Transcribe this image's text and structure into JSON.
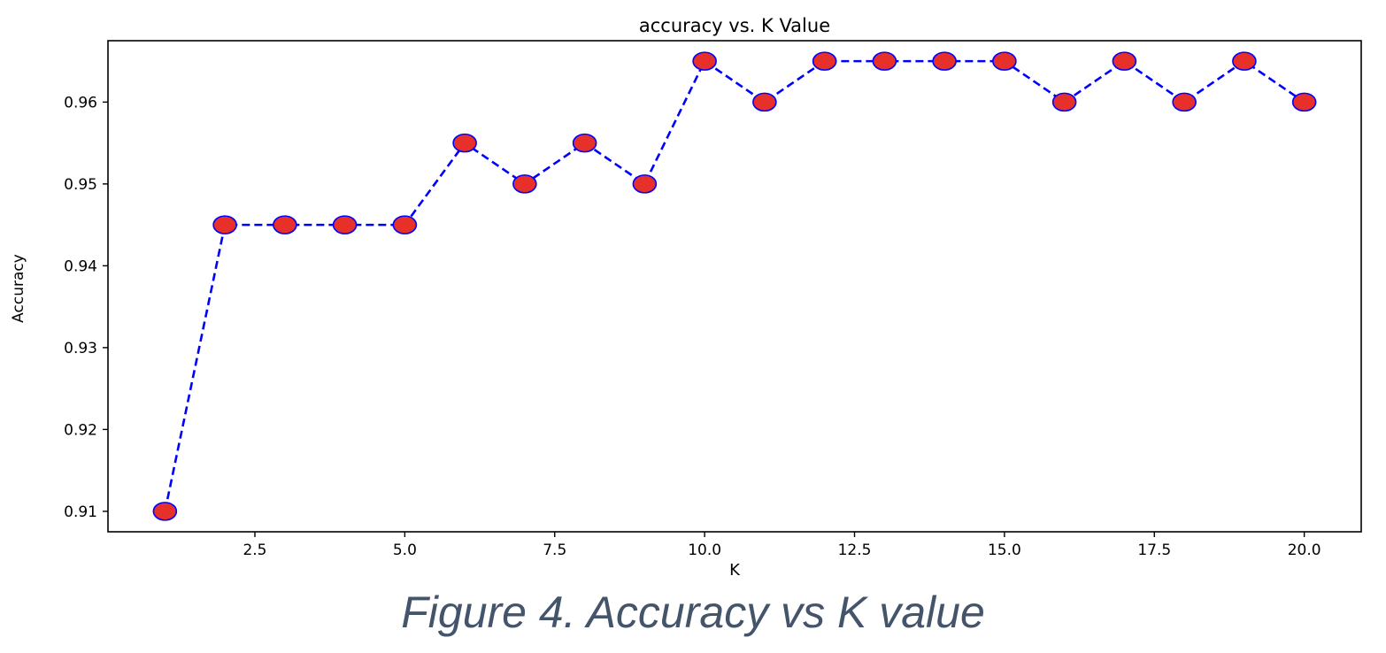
{
  "chart_data": {
    "type": "line",
    "title": "accuracy vs. K Value",
    "xlabel": "K",
    "ylabel": "Accuracy",
    "xlim": [
      0.05,
      20.95
    ],
    "ylim": [
      0.9075,
      0.9675
    ],
    "xticks": [
      2.5,
      5.0,
      7.5,
      10.0,
      12.5,
      15.0,
      17.5,
      20.0
    ],
    "xtick_labels": [
      "2.5",
      "5.0",
      "7.5",
      "10.0",
      "12.5",
      "15.0",
      "17.5",
      "20.0"
    ],
    "yticks": [
      0.91,
      0.92,
      0.93,
      0.94,
      0.95,
      0.96
    ],
    "ytick_labels": [
      "0.91",
      "0.92",
      "0.93",
      "0.94",
      "0.95",
      "0.96"
    ],
    "grid": false,
    "series": [
      {
        "x": [
          1,
          2,
          3,
          4,
          5,
          6,
          7,
          8,
          9,
          10,
          11,
          12,
          13,
          14,
          15,
          16,
          17,
          18,
          19,
          20
        ],
        "values": [
          0.91,
          0.945,
          0.945,
          0.945,
          0.945,
          0.955,
          0.95,
          0.955,
          0.95,
          0.965,
          0.96,
          0.965,
          0.965,
          0.965,
          0.965,
          0.96,
          0.965,
          0.96,
          0.965,
          0.96
        ],
        "line_color": "#0000ff",
        "line_style": "dashed",
        "marker": "circle",
        "marker_face": "#e8302a",
        "marker_edge": "#0000ff"
      }
    ]
  },
  "caption": "Figure 4. Accuracy vs K value"
}
